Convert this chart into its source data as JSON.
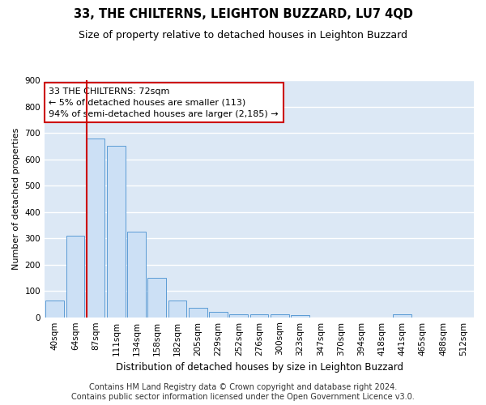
{
  "title": "33, THE CHILTERNS, LEIGHTON BUZZARD, LU7 4QD",
  "subtitle": "Size of property relative to detached houses in Leighton Buzzard",
  "xlabel": "Distribution of detached houses by size in Leighton Buzzard",
  "ylabel": "Number of detached properties",
  "footer_line1": "Contains HM Land Registry data © Crown copyright and database right 2024.",
  "footer_line2": "Contains public sector information licensed under the Open Government Licence v3.0.",
  "bar_labels": [
    "40sqm",
    "64sqm",
    "87sqm",
    "111sqm",
    "134sqm",
    "158sqm",
    "182sqm",
    "205sqm",
    "229sqm",
    "252sqm",
    "276sqm",
    "300sqm",
    "323sqm",
    "347sqm",
    "370sqm",
    "394sqm",
    "418sqm",
    "441sqm",
    "465sqm",
    "488sqm",
    "512sqm"
  ],
  "bar_values": [
    65,
    310,
    680,
    650,
    325,
    150,
    65,
    35,
    20,
    12,
    10,
    10,
    8,
    0,
    0,
    0,
    0,
    10,
    0,
    0,
    0
  ],
  "bar_color": "#cce0f5",
  "bar_edge_color": "#5b9bd5",
  "bg_color": "#dce8f5",
  "grid_color": "#ffffff",
  "vline_x": 1.55,
  "vline_color": "#cc0000",
  "ann_line1": "33 THE CHILTERNS: 72sqm",
  "ann_line2": "← 5% of detached houses are smaller (113)",
  "ann_line3": "94% of semi-detached houses are larger (2,185) →",
  "annotation_box_color": "#ffffff",
  "annotation_border_color": "#cc0000",
  "ylim": [
    0,
    900
  ],
  "yticks": [
    0,
    100,
    200,
    300,
    400,
    500,
    600,
    700,
    800,
    900
  ],
  "title_fontsize": 10.5,
  "subtitle_fontsize": 9,
  "annotation_fontsize": 8,
  "tick_fontsize": 7.5,
  "ylabel_fontsize": 8,
  "xlabel_fontsize": 8.5,
  "footer_fontsize": 7
}
